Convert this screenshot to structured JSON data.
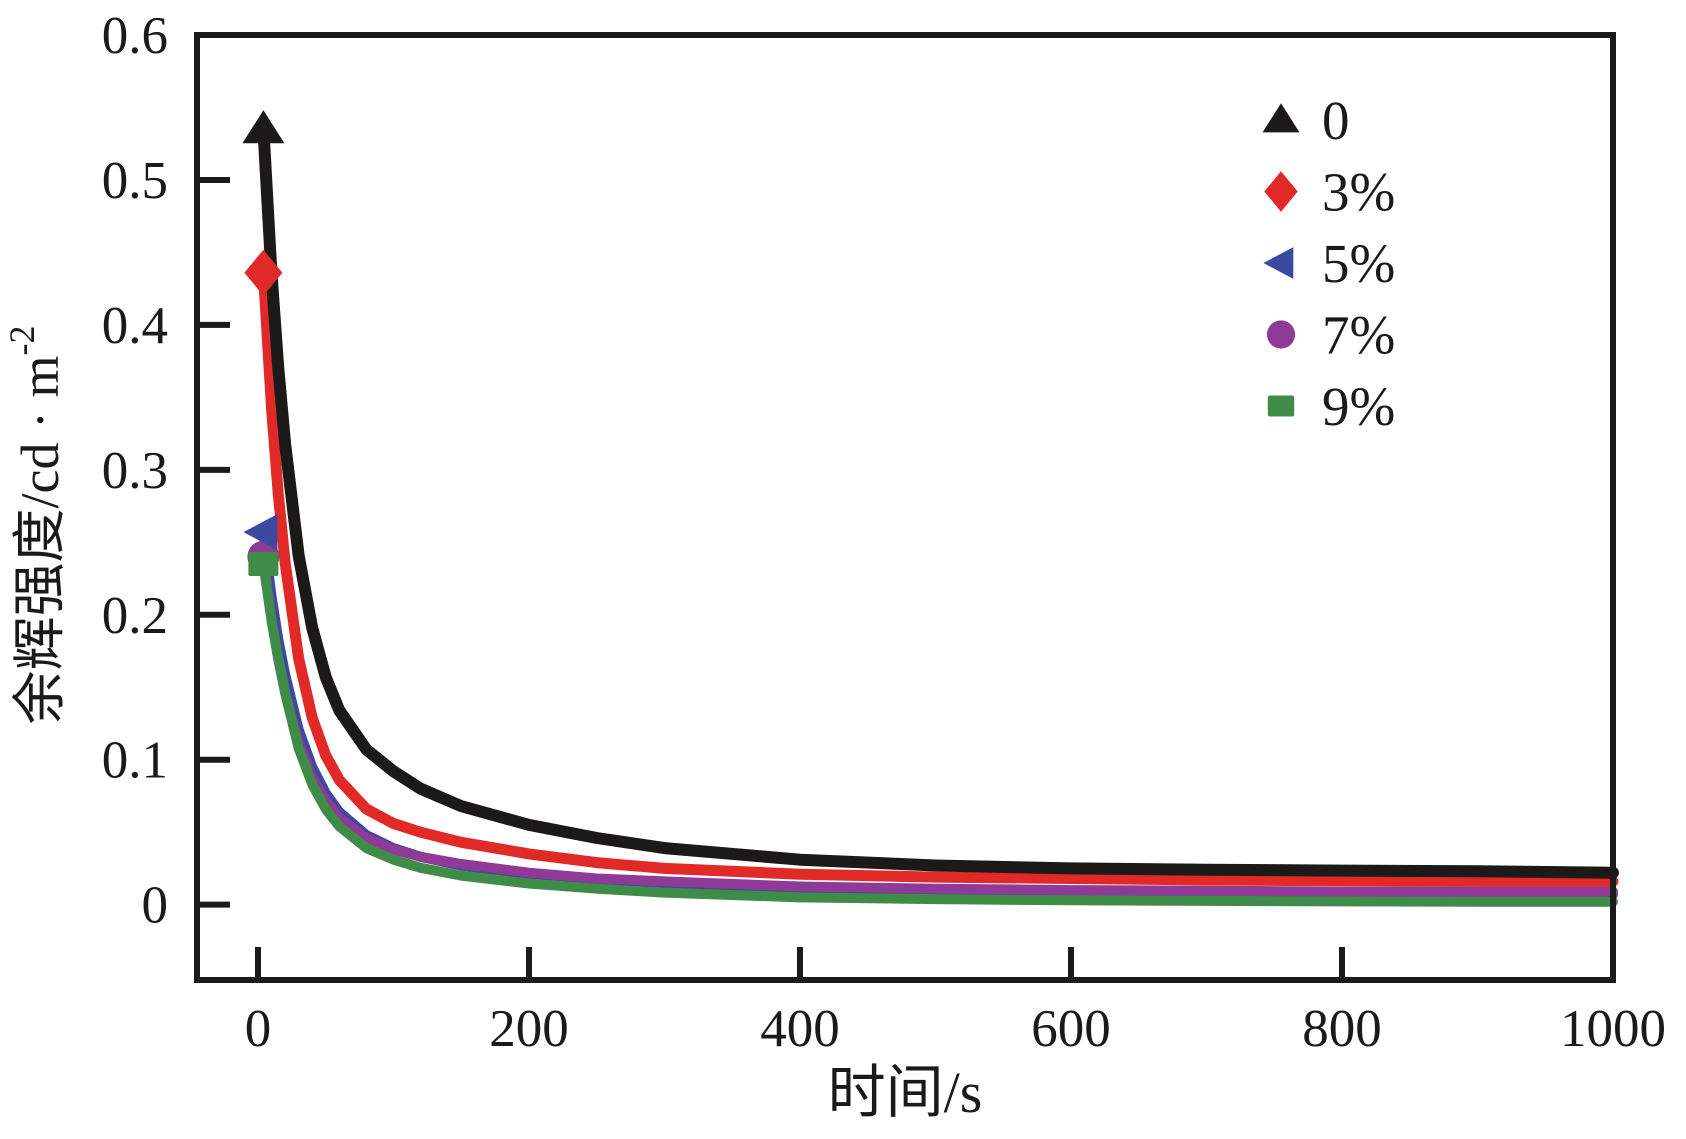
{
  "figure": {
    "description": "Afterglow decay curves for samples with different doping percentages",
    "background": "#ffffff"
  },
  "chart_data": {
    "type": "line",
    "title": "",
    "xlabel": "时间/s",
    "ylabel_base": "余辉强度/cd · m",
    "ylabel_superscript": "-2",
    "xlim": [
      -45,
      1000
    ],
    "ylim": [
      -0.052,
      0.6
    ],
    "x_ticks": [
      0,
      200,
      400,
      600,
      800,
      1000
    ],
    "x_tick_labels": [
      "0",
      "200",
      "400",
      "600",
      "800",
      "1000"
    ],
    "y_ticks": [
      0,
      0.1,
      0.2,
      0.3,
      0.4,
      0.5,
      0.6
    ],
    "y_tick_labels": [
      "0",
      "0.1",
      "0.2",
      "0.3",
      "0.4",
      "0.5",
      "0.6"
    ],
    "grid": false,
    "frame": true,
    "legend_position": "upper-right",
    "series": [
      {
        "name": "5%",
        "color": "#3c49a0",
        "marker": "triangle-left",
        "line_width": 10,
        "points": [
          [
            4,
            0.257
          ],
          [
            10,
            0.213
          ],
          [
            15,
            0.183
          ],
          [
            20,
            0.159
          ],
          [
            30,
            0.121
          ],
          [
            40,
            0.095
          ],
          [
            50,
            0.077
          ],
          [
            60,
            0.064
          ],
          [
            80,
            0.048
          ],
          [
            100,
            0.039
          ],
          [
            120,
            0.033
          ],
          [
            150,
            0.027
          ],
          [
            200,
            0.021
          ],
          [
            250,
            0.017
          ],
          [
            300,
            0.014
          ],
          [
            400,
            0.0105
          ],
          [
            500,
            0.0092
          ],
          [
            600,
            0.008
          ],
          [
            700,
            0.0074
          ],
          [
            800,
            0.007
          ],
          [
            900,
            0.007
          ],
          [
            1000,
            0.007
          ]
        ]
      },
      {
        "name": "7%",
        "color": "#8e3a96",
        "marker": "circle",
        "line_width": 10,
        "points": [
          [
            4,
            0.24
          ],
          [
            10,
            0.197
          ],
          [
            15,
            0.169
          ],
          [
            20,
            0.147
          ],
          [
            30,
            0.112
          ],
          [
            40,
            0.088
          ],
          [
            50,
            0.072
          ],
          [
            60,
            0.06
          ],
          [
            80,
            0.046
          ],
          [
            100,
            0.038
          ],
          [
            120,
            0.033
          ],
          [
            150,
            0.028
          ],
          [
            200,
            0.022
          ],
          [
            250,
            0.018
          ],
          [
            300,
            0.016
          ],
          [
            400,
            0.0125
          ],
          [
            500,
            0.011
          ],
          [
            600,
            0.01
          ],
          [
            700,
            0.0096
          ],
          [
            800,
            0.009
          ],
          [
            900,
            0.009
          ],
          [
            1000,
            0.009
          ]
        ]
      },
      {
        "name": "9%",
        "color": "#3e8c48",
        "marker": "square",
        "line_width": 10,
        "points": [
          [
            4,
            0.235
          ],
          [
            10,
            0.196
          ],
          [
            15,
            0.17
          ],
          [
            20,
            0.146
          ],
          [
            30,
            0.108
          ],
          [
            40,
            0.083
          ],
          [
            50,
            0.066
          ],
          [
            60,
            0.054
          ],
          [
            80,
            0.039
          ],
          [
            100,
            0.031
          ],
          [
            120,
            0.0254
          ],
          [
            150,
            0.02
          ],
          [
            200,
            0.0146
          ],
          [
            250,
            0.011
          ],
          [
            300,
            0.0083
          ],
          [
            400,
            0.005
          ],
          [
            500,
            0.0038
          ],
          [
            600,
            0.003
          ],
          [
            700,
            0.0026
          ],
          [
            800,
            0.0022
          ],
          [
            900,
            0.002
          ],
          [
            1000,
            0.002
          ]
        ]
      },
      {
        "name": "3%",
        "color": "#e12928",
        "marker": "diamond",
        "line_width": 11,
        "points": [
          [
            4,
            0.436
          ],
          [
            10,
            0.343
          ],
          [
            15,
            0.283
          ],
          [
            20,
            0.236
          ],
          [
            30,
            0.17
          ],
          [
            40,
            0.129
          ],
          [
            50,
            0.103
          ],
          [
            60,
            0.086
          ],
          [
            80,
            0.066
          ],
          [
            100,
            0.056
          ],
          [
            120,
            0.05
          ],
          [
            150,
            0.043
          ],
          [
            200,
            0.035
          ],
          [
            250,
            0.029
          ],
          [
            300,
            0.025
          ],
          [
            400,
            0.021
          ],
          [
            500,
            0.019
          ],
          [
            600,
            0.018
          ],
          [
            700,
            0.017
          ],
          [
            800,
            0.0165
          ],
          [
            900,
            0.016
          ],
          [
            1000,
            0.016
          ]
        ]
      },
      {
        "name": "0",
        "color": "#1b1a19",
        "marker": "triangle-up",
        "line_width": 12,
        "points": [
          [
            4,
            0.535
          ],
          [
            10,
            0.435
          ],
          [
            15,
            0.37
          ],
          [
            20,
            0.318
          ],
          [
            30,
            0.241
          ],
          [
            40,
            0.191
          ],
          [
            50,
            0.157
          ],
          [
            60,
            0.134
          ],
          [
            80,
            0.107
          ],
          [
            100,
            0.092
          ],
          [
            120,
            0.08
          ],
          [
            150,
            0.068
          ],
          [
            200,
            0.055
          ],
          [
            250,
            0.046
          ],
          [
            300,
            0.039
          ],
          [
            400,
            0.031
          ],
          [
            500,
            0.027
          ],
          [
            600,
            0.025
          ],
          [
            700,
            0.024
          ],
          [
            800,
            0.0235
          ],
          [
            900,
            0.023
          ],
          [
            1000,
            0.022
          ]
        ]
      }
    ],
    "legend": [
      {
        "label": "0",
        "marker": "triangle-up",
        "color": "#1b1a19"
      },
      {
        "label": "3%",
        "marker": "diamond",
        "color": "#e12928"
      },
      {
        "label": "5%",
        "marker": "triangle-left",
        "color": "#3c49a0"
      },
      {
        "label": "7%",
        "marker": "circle",
        "color": "#8e3a96"
      },
      {
        "label": "9%",
        "marker": "square",
        "color": "#3e8c48"
      }
    ]
  },
  "style": {
    "axis_color": "#1a1a1a",
    "frame_stroke": 6,
    "tick_length": 33,
    "tick_stroke": 6,
    "tick_font_size": 53,
    "axis_label_font_size": 58,
    "legend_font_size": 55
  }
}
